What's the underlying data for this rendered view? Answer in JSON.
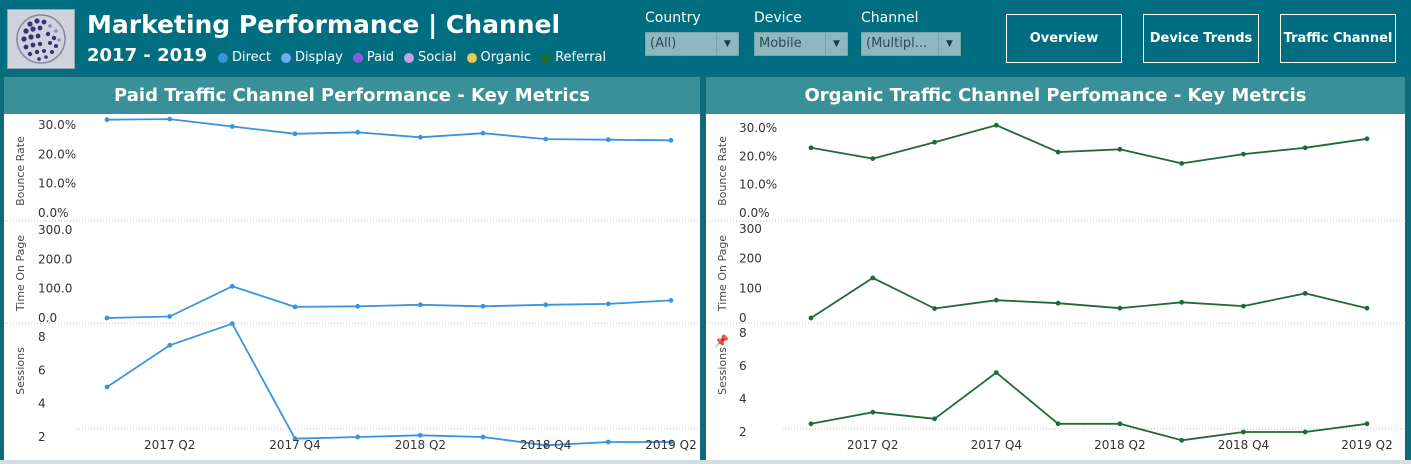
{
  "header": {
    "title": "Marketing Performance | Channel",
    "years": "2017 - 2019",
    "legend": [
      {
        "label": "Direct",
        "color": "#3a94dc"
      },
      {
        "label": "Display",
        "color": "#6ab0ea"
      },
      {
        "label": "Paid",
        "color": "#8a5ae0"
      },
      {
        "label": "Social",
        "color": "#c8a0e8"
      },
      {
        "label": "Organic",
        "color": "#f2c94c"
      },
      {
        "label": "Referral",
        "color": "#1e6b34"
      }
    ]
  },
  "filters": {
    "country": {
      "label": "Country",
      "value": "(All)"
    },
    "device": {
      "label": "Device",
      "value": "Mobile"
    },
    "channel": {
      "label": "Channel",
      "value": "(Multipl..."
    }
  },
  "nav": {
    "overview": "Overview",
    "device_trends": "Device Trends",
    "traffic_channel": "Traffic Channel"
  },
  "panels": {
    "left_title": "Paid Traffic Channel Performance - Key Metrics",
    "right_title": "Organic Traffic Channel Perfomance - Key Metrcis"
  },
  "chart_data": [
    {
      "type": "line",
      "title": "Paid Traffic Channel Performance - Key Metrics",
      "color": "#3a94dc",
      "x_labels": [
        "2017 Q2",
        "2017 Q4",
        "2018 Q2",
        "2018 Q4",
        "2019 Q2"
      ],
      "x": [
        "2017 Q1",
        "2017 Q2",
        "2017 Q3",
        "2017 Q4",
        "2018 Q1",
        "2018 Q2",
        "2018 Q3",
        "2018 Q4",
        "2019 Q1",
        "2019 Q2"
      ],
      "grid": false,
      "panes": [
        {
          "ylabel": "Bounce Rate",
          "ticks": [
            "30.0%",
            "20.0%",
            "10.0%",
            "0.0%"
          ],
          "tick_values": [
            30,
            20,
            10,
            0
          ],
          "ylim": [
            0,
            33
          ],
          "values": [
            31.8,
            32.0,
            29.5,
            27.0,
            27.5,
            25.8,
            27.2,
            25.2,
            25.0,
            24.8
          ]
        },
        {
          "ylabel": "Time On Page",
          "ticks": [
            "300.0",
            "200.0",
            "100.0",
            "0.0"
          ],
          "tick_values": [
            300,
            200,
            100,
            0
          ],
          "ylim": [
            0,
            300
          ],
          "values": [
            0,
            5,
            108,
            38,
            40,
            45,
            40,
            45,
            48,
            60
          ]
        },
        {
          "ylabel": "Sessions",
          "ticks": [
            "8",
            "6",
            "4",
            "2"
          ],
          "tick_values": [
            8,
            6,
            4,
            2
          ],
          "ylim": [
            0,
            9
          ],
          "values": [
            5.0,
            7.5,
            8.8,
            1.9,
            2.0,
            2.1,
            2.0,
            1.5,
            1.7,
            1.7
          ]
        }
      ]
    },
    {
      "type": "line",
      "title": "Organic Traffic Channel Perfomance - Key Metrcis",
      "color": "#1e6b34",
      "x_labels": [
        "2017 Q2",
        "2017 Q4",
        "2018 Q2",
        "2018 Q4",
        "2019 Q2"
      ],
      "x": [
        "2017 Q1",
        "2017 Q2",
        "2017 Q3",
        "2017 Q4",
        "2018 Q1",
        "2018 Q2",
        "2018 Q3",
        "2018 Q4",
        "2019 Q1",
        "2019 Q2"
      ],
      "grid": false,
      "panes": [
        {
          "ylabel": "Bounce Rate",
          "ticks": [
            "30.0%",
            "20.0%",
            "10.0%",
            "0.0%"
          ],
          "tick_values": [
            30,
            20,
            10,
            0
          ],
          "ylim": [
            0,
            33
          ],
          "values": [
            23.0,
            19.2,
            25.0,
            31.0,
            21.5,
            22.5,
            17.5,
            20.8,
            23.0,
            26.2
          ]
        },
        {
          "ylabel": "Time On Page",
          "ticks": [
            "300",
            "200",
            "100",
            "0"
          ],
          "tick_values": [
            300,
            200,
            100,
            0
          ],
          "ylim": [
            0,
            300
          ],
          "values": [
            0,
            135,
            32,
            60,
            50,
            33,
            53,
            40,
            83,
            33
          ]
        },
        {
          "ylabel": "Sessions",
          "ticks": [
            "8",
            "6",
            "4",
            "2"
          ],
          "tick_values": [
            8,
            6,
            4,
            2
          ],
          "ylim": [
            0,
            9
          ],
          "values": [
            2.5,
            3.2,
            2.8,
            5.6,
            2.5,
            2.5,
            1.5,
            2.0,
            2.0,
            2.5
          ]
        }
      ]
    }
  ]
}
